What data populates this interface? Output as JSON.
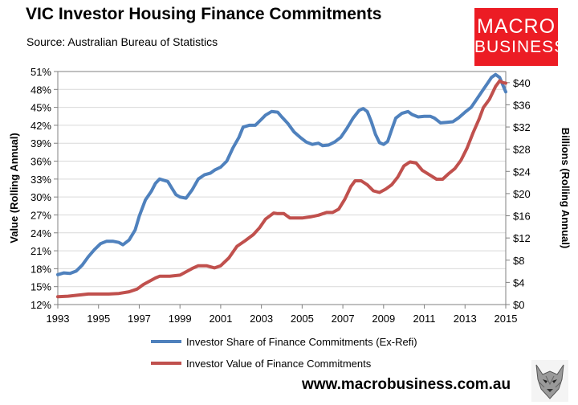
{
  "header": {
    "title": "VIC Investor Housing Finance Commitments",
    "source": "Source: Australian Bureau of Statistics"
  },
  "logo": {
    "line1": "MACRO",
    "line2": "BUSINESS"
  },
  "footer": {
    "url": "www.macrobusiness.com.au",
    "mascot_icon": "wolf-icon"
  },
  "colors": {
    "series_share": "#4f81bd",
    "series_value": "#c0504d",
    "grid": "#d9d9d9",
    "brand": "#ec1c24"
  },
  "chart_data": {
    "type": "line",
    "grid": true,
    "legend_position": "bottom",
    "x_ticks": [
      "1993",
      "1995",
      "1997",
      "1999",
      "2001",
      "2003",
      "2005",
      "2007",
      "2009",
      "2011",
      "2013",
      "2015"
    ],
    "x_range": [
      1993,
      2015
    ],
    "y_left": {
      "label": "Value (Rolling Annual)",
      "range": [
        12,
        51
      ],
      "ticks": [
        "12%",
        "15%",
        "18%",
        "21%",
        "24%",
        "27%",
        "30%",
        "33%",
        "36%",
        "39%",
        "42%",
        "45%",
        "48%",
        "51%"
      ]
    },
    "y_right": {
      "label": "Billions (Rolling Annual)",
      "range": [
        0,
        42
      ],
      "ticks": [
        "$0",
        "$4",
        "$8",
        "$12",
        "$16",
        "$20",
        "$24",
        "$28",
        "$32",
        "$36",
        "$40"
      ]
    },
    "series": [
      {
        "name": "Investor Share of Finance Commitments (Ex-Refi)",
        "axis": "left",
        "points": [
          [
            1993.0,
            17.0
          ],
          [
            1993.3,
            17.3
          ],
          [
            1993.6,
            17.2
          ],
          [
            1993.9,
            17.6
          ],
          [
            1994.2,
            18.6
          ],
          [
            1994.5,
            20.0
          ],
          [
            1994.8,
            21.2
          ],
          [
            1995.1,
            22.2
          ],
          [
            1995.4,
            22.6
          ],
          [
            1995.7,
            22.6
          ],
          [
            1996.0,
            22.4
          ],
          [
            1996.2,
            22.0
          ],
          [
            1996.5,
            22.8
          ],
          [
            1996.8,
            24.5
          ],
          [
            1997.0,
            26.8
          ],
          [
            1997.3,
            29.5
          ],
          [
            1997.6,
            31.0
          ],
          [
            1997.8,
            32.3
          ],
          [
            1998.0,
            33.0
          ],
          [
            1998.2,
            32.8
          ],
          [
            1998.4,
            32.6
          ],
          [
            1998.6,
            31.5
          ],
          [
            1998.8,
            30.4
          ],
          [
            1999.0,
            30.0
          ],
          [
            1999.3,
            29.8
          ],
          [
            1999.6,
            31.2
          ],
          [
            1999.9,
            33.0
          ],
          [
            2000.2,
            33.7
          ],
          [
            2000.5,
            34.0
          ],
          [
            2000.7,
            34.5
          ],
          [
            2001.0,
            35.0
          ],
          [
            2001.3,
            36.0
          ],
          [
            2001.6,
            38.2
          ],
          [
            2001.9,
            40.0
          ],
          [
            2002.1,
            41.7
          ],
          [
            2002.4,
            42.0
          ],
          [
            2002.7,
            42.0
          ],
          [
            2003.0,
            43.0
          ],
          [
            2003.2,
            43.7
          ],
          [
            2003.5,
            44.3
          ],
          [
            2003.8,
            44.2
          ],
          [
            2004.0,
            43.4
          ],
          [
            2004.3,
            42.3
          ],
          [
            2004.6,
            40.9
          ],
          [
            2004.9,
            40.0
          ],
          [
            2005.2,
            39.2
          ],
          [
            2005.5,
            38.8
          ],
          [
            2005.8,
            39.0
          ],
          [
            2006.0,
            38.6
          ],
          [
            2006.3,
            38.7
          ],
          [
            2006.6,
            39.2
          ],
          [
            2006.9,
            40.0
          ],
          [
            2007.2,
            41.5
          ],
          [
            2007.5,
            43.2
          ],
          [
            2007.8,
            44.5
          ],
          [
            2008.0,
            44.8
          ],
          [
            2008.2,
            44.3
          ],
          [
            2008.4,
            42.6
          ],
          [
            2008.6,
            40.5
          ],
          [
            2008.8,
            39.1
          ],
          [
            2009.0,
            38.8
          ],
          [
            2009.2,
            39.3
          ],
          [
            2009.4,
            41.3
          ],
          [
            2009.6,
            43.2
          ],
          [
            2009.9,
            44.0
          ],
          [
            2010.2,
            44.3
          ],
          [
            2010.4,
            43.8
          ],
          [
            2010.7,
            43.4
          ],
          [
            2011.0,
            43.5
          ],
          [
            2011.3,
            43.5
          ],
          [
            2011.5,
            43.2
          ],
          [
            2011.8,
            42.4
          ],
          [
            2012.1,
            42.5
          ],
          [
            2012.4,
            42.6
          ],
          [
            2012.7,
            43.3
          ],
          [
            2013.0,
            44.2
          ],
          [
            2013.3,
            45.0
          ],
          [
            2013.6,
            46.5
          ],
          [
            2013.9,
            48.0
          ],
          [
            2014.1,
            49.0
          ],
          [
            2014.3,
            50.0
          ],
          [
            2014.5,
            50.5
          ],
          [
            2014.7,
            50.0
          ],
          [
            2014.85,
            48.8
          ],
          [
            2015.0,
            47.6
          ]
        ]
      },
      {
        "name": "Investor Value of Finance Commitments",
        "axis": "right",
        "points": [
          [
            1993.0,
            1.4
          ],
          [
            1993.5,
            1.5
          ],
          [
            1994.0,
            1.7
          ],
          [
            1994.5,
            1.9
          ],
          [
            1995.0,
            1.9
          ],
          [
            1995.5,
            1.9
          ],
          [
            1996.0,
            2.0
          ],
          [
            1996.5,
            2.3
          ],
          [
            1996.9,
            2.8
          ],
          [
            1997.2,
            3.6
          ],
          [
            1997.5,
            4.2
          ],
          [
            1997.8,
            4.8
          ],
          [
            1998.0,
            5.1
          ],
          [
            1998.5,
            5.1
          ],
          [
            1999.0,
            5.3
          ],
          [
            1999.3,
            5.9
          ],
          [
            1999.6,
            6.5
          ],
          [
            1999.9,
            7.0
          ],
          [
            2000.3,
            7.0
          ],
          [
            2000.7,
            6.6
          ],
          [
            2001.0,
            7.0
          ],
          [
            2001.4,
            8.4
          ],
          [
            2001.8,
            10.5
          ],
          [
            2002.2,
            11.5
          ],
          [
            2002.6,
            12.6
          ],
          [
            2002.9,
            13.8
          ],
          [
            2003.2,
            15.4
          ],
          [
            2003.6,
            16.5
          ],
          [
            2003.8,
            16.4
          ],
          [
            2004.1,
            16.4
          ],
          [
            2004.4,
            15.6
          ],
          [
            2004.7,
            15.6
          ],
          [
            2005.0,
            15.6
          ],
          [
            2005.4,
            15.8
          ],
          [
            2005.8,
            16.1
          ],
          [
            2006.2,
            16.6
          ],
          [
            2006.5,
            16.6
          ],
          [
            2006.8,
            17.2
          ],
          [
            2007.1,
            19.0
          ],
          [
            2007.4,
            21.3
          ],
          [
            2007.6,
            22.3
          ],
          [
            2007.9,
            22.3
          ],
          [
            2008.2,
            21.6
          ],
          [
            2008.5,
            20.5
          ],
          [
            2008.8,
            20.2
          ],
          [
            2009.1,
            20.8
          ],
          [
            2009.4,
            21.6
          ],
          [
            2009.7,
            23.0
          ],
          [
            2010.0,
            25.0
          ],
          [
            2010.3,
            25.7
          ],
          [
            2010.6,
            25.5
          ],
          [
            2010.9,
            24.2
          ],
          [
            2011.2,
            23.5
          ],
          [
            2011.6,
            22.6
          ],
          [
            2011.9,
            22.6
          ],
          [
            2012.2,
            23.6
          ],
          [
            2012.5,
            24.5
          ],
          [
            2012.8,
            26.0
          ],
          [
            2013.1,
            28.2
          ],
          [
            2013.4,
            31.0
          ],
          [
            2013.7,
            33.5
          ],
          [
            2013.9,
            35.5
          ],
          [
            2014.2,
            37.0
          ],
          [
            2014.5,
            39.3
          ],
          [
            2014.7,
            40.3
          ],
          [
            2014.85,
            40.0
          ],
          [
            2015.0,
            39.9
          ]
        ]
      }
    ]
  }
}
